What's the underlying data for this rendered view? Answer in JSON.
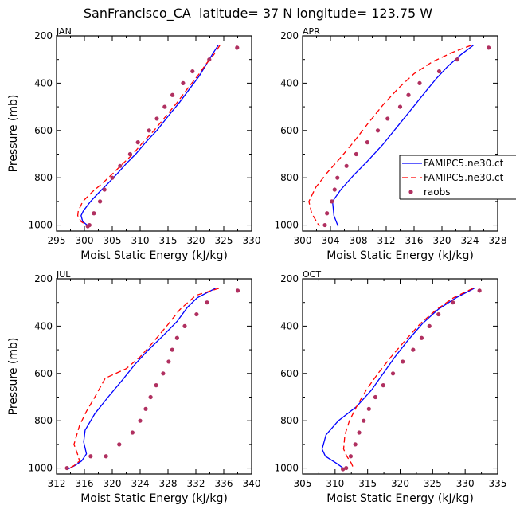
{
  "figure": {
    "title": "SanFrancisco_CA  latitude= 37 N longitude= 123.75 W"
  },
  "legend": {
    "entries": [
      {
        "label": "FAMIPC5.ne30.ct",
        "color": "#0000ff",
        "style": "solid"
      },
      {
        "label": "FAMIPC5.ne30.ct",
        "color": "#ff0000",
        "style": "dashed"
      },
      {
        "label": "raobs",
        "color": "#b03060",
        "style": "marker"
      }
    ]
  },
  "chart_data": [
    {
      "type": "line",
      "panel": "JAN",
      "title": "JAN",
      "xlabel": "Moist Static Energy (kJ/kg)",
      "ylabel": "Pressure (mb)",
      "xlim": [
        295,
        330
      ],
      "ylim": [
        1025,
        200
      ],
      "grid": false,
      "xticks": [
        295,
        300,
        305,
        310,
        315,
        320,
        325,
        330
      ],
      "yticks": [
        200,
        400,
        600,
        800,
        1000
      ],
      "series": [
        {
          "name": "FAMIPC5.ne30.ct (solid)",
          "color": "#0000ff",
          "dash": "",
          "x": [
            324.0,
            322.9,
            321.9,
            320.6,
            319.0,
            317.1,
            315.0,
            313.0,
            311.0,
            309.2,
            307.5,
            306.0,
            304.4,
            302.7,
            301.1,
            299.8,
            299.4,
            299.7,
            300.8
          ],
          "y": [
            240,
            280,
            320,
            370,
            420,
            480,
            540,
            600,
            650,
            700,
            740,
            780,
            820,
            860,
            900,
            940,
            960,
            985,
            1005
          ]
        },
        {
          "name": "FAMIPC5.ne30.ct (dashed)",
          "color": "#ff0000",
          "dash": "7,4",
          "x": [
            324.3,
            323.2,
            321.8,
            320.3,
            318.6,
            316.7,
            314.6,
            312.5,
            310.5,
            308.7,
            306.9,
            305.2,
            303.4,
            301.4,
            299.7,
            298.9,
            298.8,
            299.4,
            300.7
          ],
          "y": [
            240,
            280,
            320,
            370,
            420,
            480,
            540,
            600,
            650,
            700,
            740,
            780,
            820,
            860,
            900,
            940,
            960,
            985,
            1005
          ]
        },
        {
          "name": "raobs",
          "color": "#b03060",
          "marker": true,
          "x": [
            327.4,
            322.4,
            319.4,
            317.7,
            315.8,
            314.4,
            313.0,
            311.6,
            309.6,
            308.2,
            306.4,
            305.0,
            303.6,
            302.8,
            301.7,
            300.9,
            300.6
          ],
          "y": [
            250,
            300,
            350,
            400,
            450,
            500,
            550,
            600,
            650,
            700,
            750,
            800,
            850,
            900,
            950,
            1000,
            1005
          ]
        }
      ]
    },
    {
      "type": "line",
      "panel": "APR",
      "title": "APR",
      "xlabel": "Moist Static Energy (kJ/kg)",
      "ylabel": "",
      "xlim": [
        300,
        328
      ],
      "ylim": [
        1025,
        200
      ],
      "grid": false,
      "xticks": [
        300,
        304,
        308,
        312,
        316,
        320,
        324,
        328
      ],
      "yticks": [
        200,
        400,
        600,
        800,
        1000
      ],
      "series": [
        {
          "name": "FAMIPC5.ne30.ct (solid)",
          "color": "#0000ff",
          "dash": "",
          "x": [
            324.5,
            322.7,
            320.8,
            319.2,
            317.8,
            315.9,
            313.7,
            311.5,
            309.3,
            307.3,
            305.5,
            304.3,
            304.5,
            305.1
          ],
          "y": [
            240,
            280,
            330,
            380,
            430,
            500,
            580,
            660,
            730,
            790,
            850,
            900,
            960,
            1005
          ]
        },
        {
          "name": "FAMIPC5.ne30.ct (dashed)",
          "color": "#ff0000",
          "dash": "7,4",
          "x": [
            324.2,
            321.5,
            318.6,
            316.0,
            313.8,
            311.6,
            309.4,
            307.3,
            305.3,
            303.5,
            301.9,
            300.9,
            301.3,
            302.4
          ],
          "y": [
            240,
            270,
            310,
            360,
            420,
            490,
            570,
            650,
            720,
            780,
            840,
            900,
            950,
            1005
          ]
        },
        {
          "name": "raobs",
          "color": "#b03060",
          "marker": true,
          "x": [
            326.7,
            322.2,
            319.6,
            316.8,
            315.2,
            314.0,
            312.2,
            310.8,
            309.3,
            307.7,
            306.3,
            305.0,
            304.6,
            304.2,
            303.5,
            303.2
          ],
          "y": [
            250,
            300,
            350,
            400,
            450,
            500,
            550,
            600,
            650,
            700,
            750,
            800,
            850,
            900,
            950,
            1000
          ]
        }
      ]
    },
    {
      "type": "line",
      "panel": "JUL",
      "title": "JUL",
      "xlabel": "Moist Static Energy (kJ/kg)",
      "ylabel": "Pressure (mb)",
      "xlim": [
        312,
        340
      ],
      "ylim": [
        1025,
        200
      ],
      "grid": false,
      "xticks": [
        312,
        316,
        320,
        324,
        328,
        332,
        336,
        340
      ],
      "yticks": [
        200,
        400,
        600,
        800,
        1000
      ],
      "series": [
        {
          "name": "FAMIPC5.ne30.ct (solid)",
          "color": "#0000ff",
          "dash": "",
          "x": [
            334.8,
            332.2,
            330.8,
            329.3,
            327.3,
            325.2,
            323.3,
            321.4,
            319.4,
            317.5,
            316.1,
            315.9,
            316.3,
            315.6,
            314.6,
            313.6
          ],
          "y": [
            240,
            280,
            320,
            380,
            440,
            500,
            560,
            630,
            700,
            770,
            840,
            890,
            940,
            970,
            990,
            1005
          ]
        },
        {
          "name": "FAMIPC5.ne30.ct (dashed)",
          "color": "#ff0000",
          "dash": "7,4",
          "x": [
            335.3,
            332.0,
            329.7,
            327.8,
            325.8,
            324.0,
            322.0,
            319.0,
            317.5,
            316.3,
            315.3,
            314.5,
            315.0,
            315.3,
            314.5,
            313.6
          ],
          "y": [
            240,
            270,
            330,
            400,
            470,
            530,
            580,
            620,
            700,
            760,
            820,
            900,
            940,
            970,
            990,
            1005
          ]
        },
        {
          "name": "raobs",
          "color": "#b03060",
          "marker": true,
          "x": [
            338.0,
            333.6,
            332.1,
            330.4,
            329.3,
            328.6,
            328.1,
            327.3,
            326.3,
            325.5,
            324.8,
            324.0,
            322.9,
            321.0,
            319.1,
            316.9,
            313.5
          ],
          "y": [
            250,
            300,
            350,
            400,
            450,
            500,
            550,
            600,
            650,
            700,
            750,
            800,
            850,
            900,
            950,
            950,
            1000
          ]
        }
      ]
    },
    {
      "type": "line",
      "panel": "OCT",
      "title": "OCT",
      "xlabel": "Moist Static Energy (kJ/kg)",
      "ylabel": "",
      "xlim": [
        305,
        335
      ],
      "ylim": [
        1025,
        200
      ],
      "grid": false,
      "xticks": [
        305,
        310,
        315,
        320,
        325,
        330,
        335
      ],
      "yticks": [
        200,
        400,
        600,
        800,
        1000
      ],
      "series": [
        {
          "name": "FAMIPC5.ne30.ct (solid)",
          "color": "#0000ff",
          "dash": "",
          "x": [
            331.4,
            328.6,
            325.8,
            323.4,
            321.2,
            319.2,
            317.4,
            315.6,
            313.3,
            310.5,
            308.6,
            308.0,
            308.5,
            310.2,
            311.5
          ],
          "y": [
            240,
            280,
            330,
            390,
            460,
            530,
            600,
            670,
            740,
            800,
            860,
            920,
            950,
            980,
            1005
          ]
        },
        {
          "name": "FAMIPC5.ne30.ct (dashed)",
          "color": "#ff0000",
          "dash": "7,4",
          "x": [
            331.2,
            328.2,
            325.6,
            323.1,
            320.8,
            318.6,
            316.6,
            314.8,
            313.3,
            312.2,
            311.5,
            311.3,
            311.8,
            312.5,
            312.9
          ],
          "y": [
            240,
            280,
            330,
            390,
            460,
            530,
            600,
            670,
            740,
            800,
            860,
            920,
            950,
            980,
            1005
          ]
        },
        {
          "name": "raobs",
          "color": "#b03060",
          "marker": true,
          "x": [
            332.2,
            328.1,
            325.9,
            324.5,
            323.3,
            322.0,
            320.4,
            318.9,
            317.4,
            316.2,
            315.2,
            314.4,
            313.7,
            313.1,
            312.4,
            311.7,
            311.2
          ],
          "y": [
            250,
            300,
            350,
            400,
            450,
            500,
            550,
            600,
            650,
            700,
            750,
            800,
            850,
            900,
            950,
            1000,
            1005
          ]
        }
      ]
    }
  ]
}
